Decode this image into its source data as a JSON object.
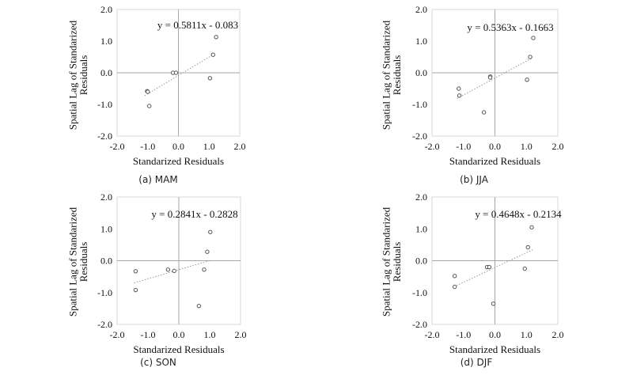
{
  "colors": {
    "background": "#ffffff",
    "axis_box": "#d9d9d9",
    "zero_axis": "#a6a6a6",
    "marker": "#555555",
    "trendline": "#9a9a9a",
    "text": "#111111"
  },
  "chart_data": [
    {
      "type": "scatter",
      "caption": "(a) MAM",
      "equation": "y = 0.5811x - 0.083",
      "xlabel": "Standarized Residuals",
      "ylabel": "Spatial Lag of Standarized Residuals",
      "xlim": [
        -2.0,
        2.0
      ],
      "ylim": [
        -2.0,
        2.0
      ],
      "xticks": [
        "-2.0",
        "-1.0",
        "0.0",
        "1.0",
        "2.0"
      ],
      "yticks": [
        "-2.0",
        "-1.0",
        "0.0",
        "1.0",
        "2.0"
      ],
      "trendline": {
        "slope": 0.5811,
        "intercept": -0.083,
        "x_range": [
          -1.1,
          1.2
        ]
      },
      "points": [
        [
          -1.02,
          -0.58
        ],
        [
          -1.0,
          -0.6
        ],
        [
          -0.95,
          -1.05
        ],
        [
          -0.18,
          0.0
        ],
        [
          -0.08,
          0.0
        ],
        [
          1.03,
          -0.17
        ],
        [
          1.13,
          0.57
        ],
        [
          1.23,
          1.13
        ]
      ]
    },
    {
      "type": "scatter",
      "caption": "(b) JJA",
      "equation": "y = 0.5363x - 0.1663",
      "xlabel": "Standarized Residuals",
      "ylabel": "Spatial Lag of Standarized Residuals",
      "xlim": [
        -2.0,
        2.0
      ],
      "ylim": [
        -2.0,
        2.0
      ],
      "xticks": [
        "-2.0",
        "-1.0",
        "0.0",
        "1.0",
        "2.0"
      ],
      "yticks": [
        "-2.0",
        "-1.0",
        "0.0",
        "1.0",
        "2.0"
      ],
      "trendline": {
        "slope": 0.5363,
        "intercept": -0.1663,
        "x_range": [
          -1.2,
          1.2
        ]
      },
      "points": [
        [
          -1.15,
          -0.5
        ],
        [
          -1.13,
          -0.72
        ],
        [
          -0.35,
          -1.25
        ],
        [
          -0.15,
          -0.12
        ],
        [
          -0.15,
          -0.15
        ],
        [
          1.02,
          -0.22
        ],
        [
          1.12,
          0.5
        ],
        [
          1.22,
          1.1
        ]
      ]
    },
    {
      "type": "scatter",
      "caption": "(c) SON",
      "equation": "y = 0.2841x - 0.2828",
      "xlabel": "Standarized Residuals",
      "ylabel": "Spatial Lag of Standarized Residuals",
      "xlim": [
        -2.0,
        2.0
      ],
      "ylim": [
        -2.0,
        2.0
      ],
      "xticks": [
        "-2.0",
        "-1.0",
        "0.0",
        "1.0",
        "2.0"
      ],
      "yticks": [
        "-2.0",
        "-1.0",
        "0.0",
        "1.0",
        "2.0"
      ],
      "trendline": {
        "slope": 0.2841,
        "intercept": -0.2828,
        "x_range": [
          -1.45,
          1.05
        ]
      },
      "points": [
        [
          -1.4,
          -0.33
        ],
        [
          -1.4,
          -0.92
        ],
        [
          -0.35,
          -0.28
        ],
        [
          -0.15,
          -0.32
        ],
        [
          0.65,
          -1.42
        ],
        [
          0.82,
          -0.28
        ],
        [
          0.92,
          0.28
        ],
        [
          1.02,
          0.9
        ]
      ]
    },
    {
      "type": "scatter",
      "caption": "(d) DJF",
      "equation": "y = 0.4648x - 0.2134",
      "xlabel": "Standarized Residuals",
      "ylabel": "Spatial Lag of Standarized Residuals",
      "xlim": [
        -2.0,
        2.0
      ],
      "ylim": [
        -2.0,
        2.0
      ],
      "xticks": [
        "-2.0",
        "-1.0",
        "0.0",
        "1.0",
        "2.0"
      ],
      "yticks": [
        "-2.0",
        "-1.0",
        "0.0",
        "1.0",
        "2.0"
      ],
      "trendline": {
        "slope": 0.4648,
        "intercept": -0.2134,
        "x_range": [
          -1.3,
          1.2
        ]
      },
      "points": [
        [
          -1.28,
          -0.48
        ],
        [
          -1.28,
          -0.82
        ],
        [
          -0.25,
          -0.2
        ],
        [
          -0.18,
          -0.2
        ],
        [
          -0.05,
          -1.35
        ],
        [
          0.95,
          -0.25
        ],
        [
          1.05,
          0.42
        ],
        [
          1.17,
          1.05
        ]
      ]
    }
  ]
}
